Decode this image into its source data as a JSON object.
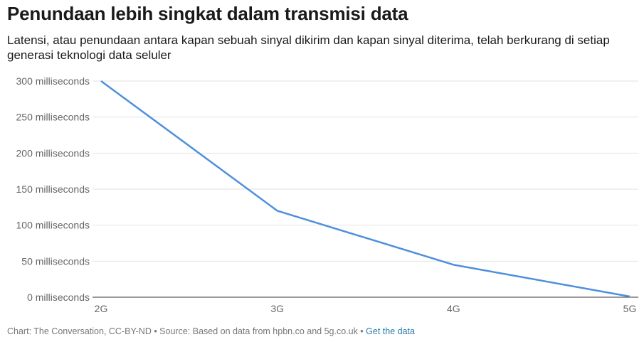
{
  "chart_data": {
    "type": "line",
    "title": "Penundaan lebih singkat dalam transmisi data",
    "subtitle": "Latensi, atau penundaan antara kapan sebuah sinyal dikirim dan kapan sinyal diterima, telah berkurang di setiap generasi teknologi data seluler",
    "categories": [
      "2G",
      "3G",
      "4G",
      "5G"
    ],
    "series": [
      {
        "values": [
          300,
          120,
          45,
          1
        ]
      }
    ],
    "ylim": [
      0,
      300
    ],
    "y_ticks": [
      0,
      50,
      100,
      150,
      200,
      250,
      300
    ],
    "y_tick_labels": [
      "0 milliseconds",
      "50 milliseconds",
      "100 milliseconds",
      "150 milliseconds",
      "200 milliseconds",
      "250 milliseconds",
      "300 milliseconds"
    ],
    "grid": true,
    "line_color": "#4f8fdd"
  },
  "footer": {
    "credit": "Chart: The Conversation, CC-BY-ND • Source: Based on data from hpbn.co and 5g.co.uk • ",
    "link_label": "Get the data"
  }
}
